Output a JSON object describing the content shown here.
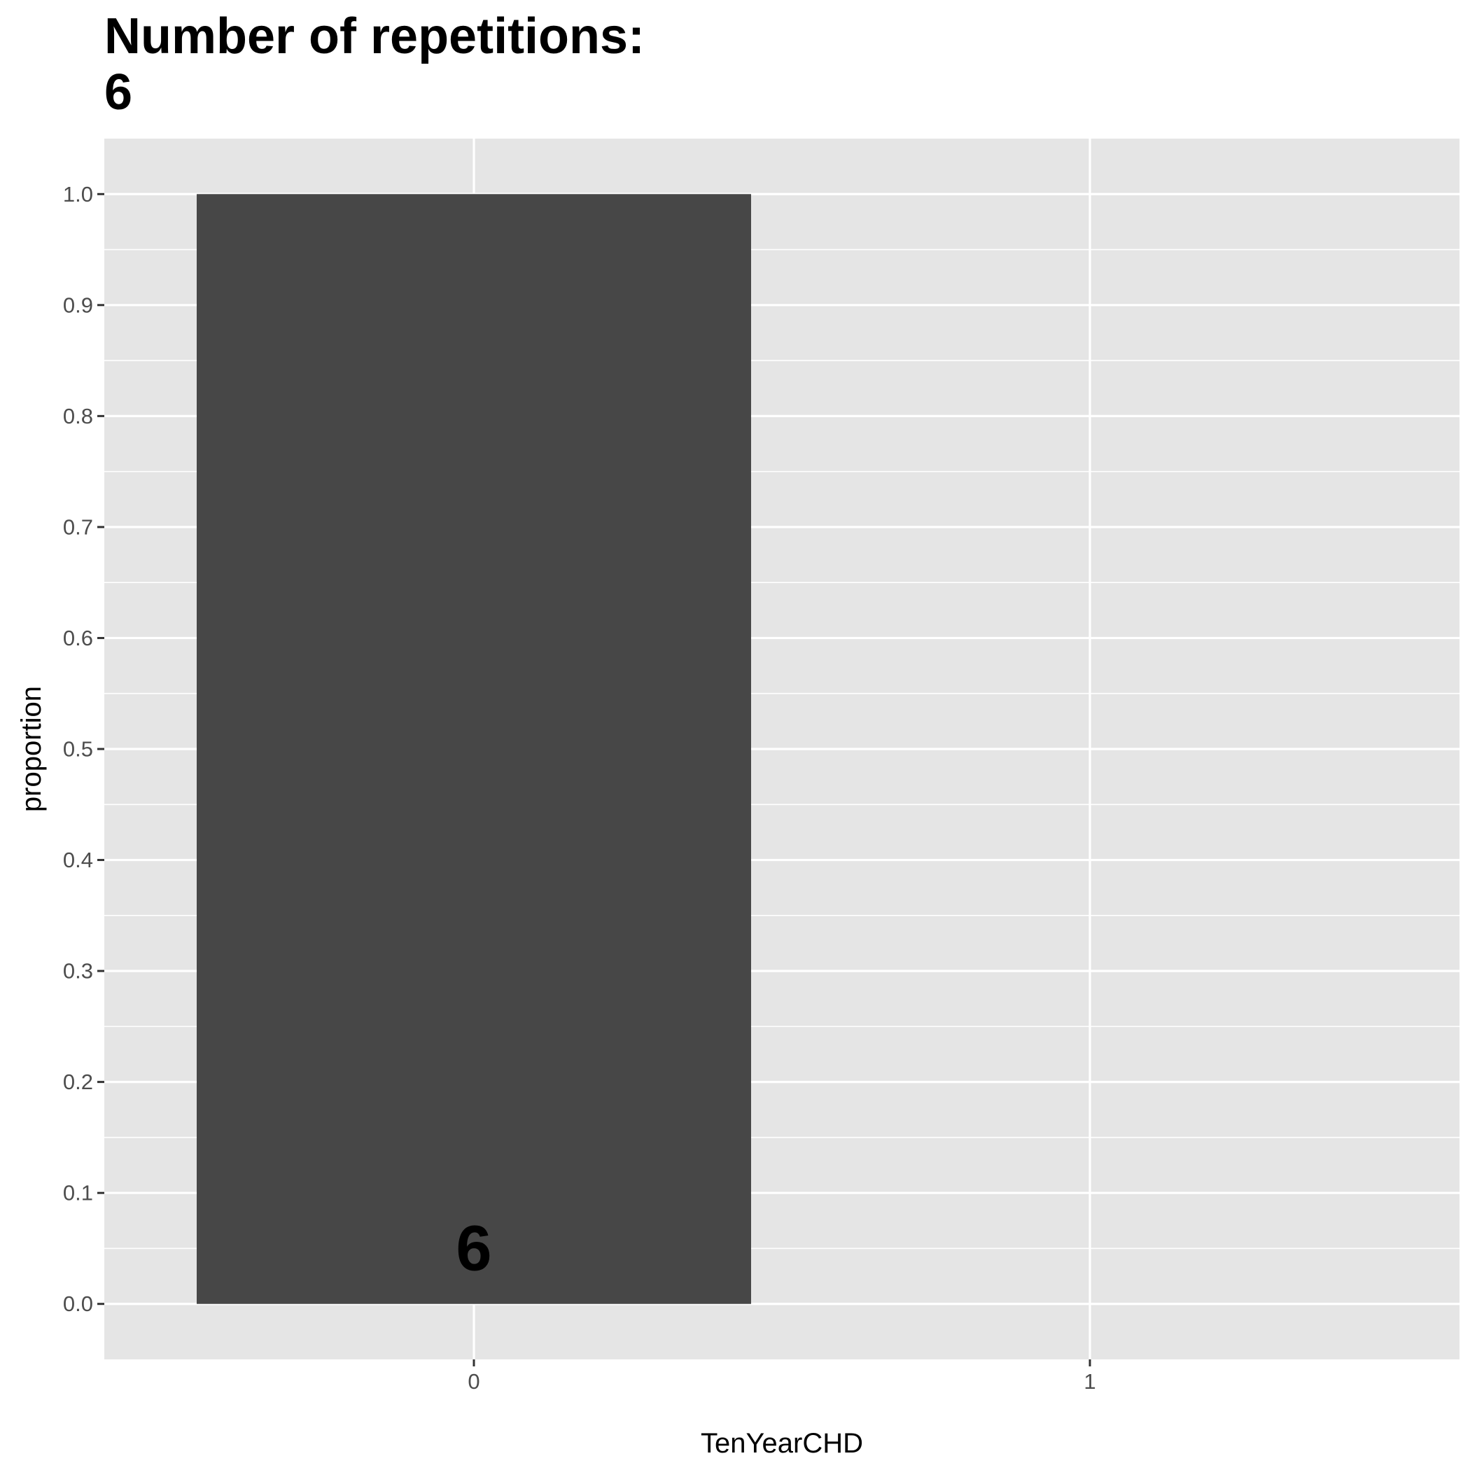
{
  "chart_data": {
    "type": "bar",
    "title": "Number of repetitions:\n6",
    "xlabel": "TenYearCHD",
    "ylabel": "proportion",
    "categories": [
      "0",
      "1"
    ],
    "values": [
      1.0,
      0.0
    ],
    "data_labels": [
      "6",
      ""
    ],
    "ylim": [
      -0.05,
      1.05
    ],
    "yticks": [
      "0.0",
      "0.1",
      "0.2",
      "0.3",
      "0.4",
      "0.5",
      "0.6",
      "0.7",
      "0.8",
      "0.9",
      "1.0"
    ],
    "grid": true,
    "legend": "none",
    "colors": {
      "panel_background": "#e5e5e5",
      "grid_line": "#ffffff",
      "bar_fill": "#474747",
      "tick_label": "#4d4d4d",
      "text": "#000000"
    }
  }
}
